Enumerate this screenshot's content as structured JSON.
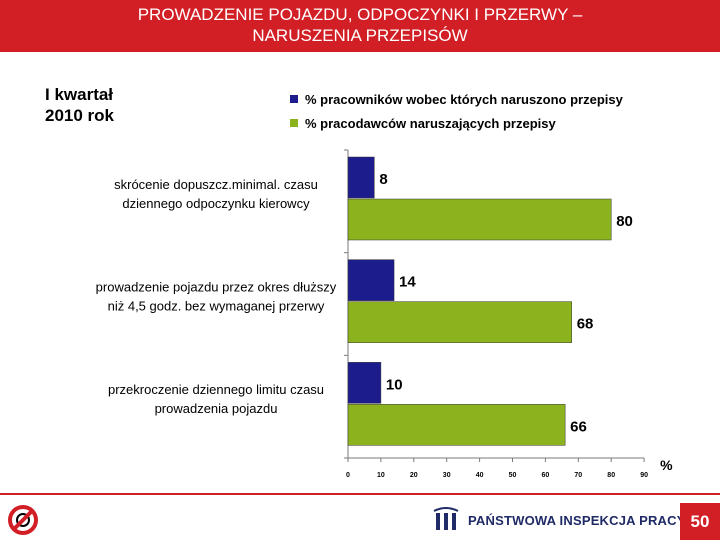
{
  "header": {
    "title_line1": "PROWADZENIE POJAZDU, ODPOCZYNKI I PRZERWY –",
    "title_line2": "NARUSZENIA PRZEPISÓW"
  },
  "period": {
    "line1": "I kwartał",
    "line2": "2010 rok"
  },
  "footer": {
    "organization": "PAŃSTWOWA INSPEKCJA PRACY",
    "page_number": "50"
  },
  "colors": {
    "header": "#d21f26",
    "series_blue": "#1c1c8c",
    "series_green": "#8cb21e",
    "footer_text": "#1f2a66"
  },
  "chart_data": {
    "type": "bar",
    "orientation": "horizontal",
    "categories": [
      [
        "skrócenie dopuszcz.minimal. czasu",
        "dziennego odpoczynku kierowcy"
      ],
      [
        "prowadzenie pojazdu przez okres dłuższy",
        "niż 4,5 godz. bez wymaganej przerwy"
      ],
      [
        "przekroczenie dziennego limitu czasu",
        "prowadzenia pojazdu"
      ]
    ],
    "series": [
      {
        "name": "% pracowników wobec których naruszono przepisy",
        "color": "#1c1c8c",
        "values": [
          8,
          14,
          10
        ]
      },
      {
        "name": "% pracodawców naruszających przepisy",
        "color": "#8cb21e",
        "values": [
          80,
          68,
          66
        ]
      }
    ],
    "xticks": [
      "0",
      "10",
      "20",
      "30",
      "40",
      "50",
      "60",
      "70",
      "80",
      "90"
    ],
    "xlim": [
      0,
      90
    ],
    "xlabel": "%",
    "legend_position": "top-right",
    "grid": false
  }
}
